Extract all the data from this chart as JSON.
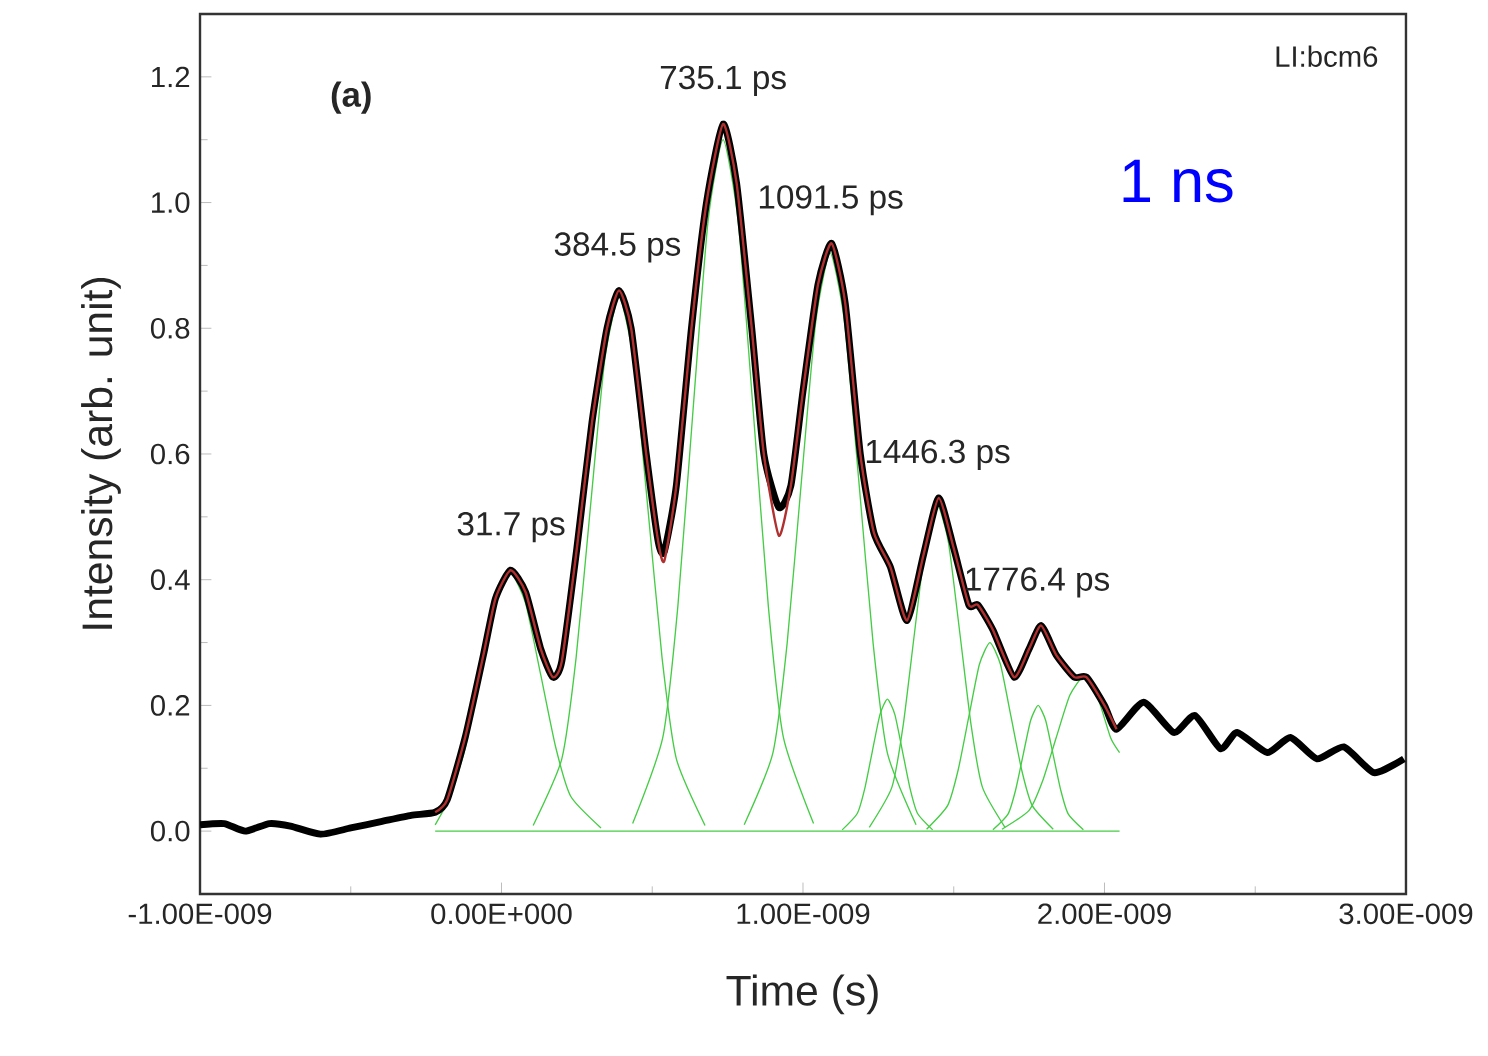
{
  "chart_data": {
    "type": "line",
    "xlabel": "Time (s)",
    "ylabel": "Intensity (arb. unit)",
    "xlim": [
      -1e-09,
      3e-09
    ],
    "ylim": [
      -0.1,
      1.3
    ],
    "xticks": [
      {
        "value": -1e-09,
        "label": "-1.00E-009"
      },
      {
        "value": 0,
        "label": "0.00E+000"
      },
      {
        "value": 1e-09,
        "label": "1.00E-009"
      },
      {
        "value": 2e-09,
        "label": "2.00E-009"
      },
      {
        "value": 3e-09,
        "label": "3.00E-009"
      }
    ],
    "yticks": [
      {
        "value": 0,
        "label": "0.0"
      },
      0.2,
      0.4,
      0.6,
      0.8,
      {
        "value": 1,
        "label": "1.0"
      },
      1.2
    ],
    "series": [
      {
        "color": "#000000",
        "x": [
          -1e-09,
          -9.2e-10,
          -8.5e-10,
          -7.7e-10,
          -7e-10,
          -6e-10,
          -5e-10,
          -4e-10,
          -3e-10,
          -2.2e-10,
          -1.8e-10,
          -1.2e-10,
          -6e-11,
          -2e-11,
          3e-11,
          8e-11,
          1.3e-10,
          1.7e-10,
          2e-10,
          2.5e-10,
          3e-10,
          3.5e-10,
          3.9e-10,
          4.3e-10,
          4.8e-10,
          5.2e-10,
          5.4e-10,
          5.8e-10,
          6.3e-10,
          6.8e-10,
          7.35e-10,
          7.8e-10,
          8.3e-10,
          8.7e-10,
          9.2e-10,
          9.6e-10,
          1e-09,
          1.05e-09,
          1.095e-09,
          1.14e-09,
          1.19e-09,
          1.235e-09,
          1.29e-09,
          1.345e-09,
          1.4e-09,
          1.45e-09,
          1.5e-09,
          1.55e-09,
          1.58e-09,
          1.63e-09,
          1.7e-09,
          1.75e-09,
          1.79e-09,
          1.84e-09,
          1.9e-09,
          1.94e-09,
          2e-09,
          2.04e-09,
          2.13e-09,
          2.23e-09,
          2.3e-09,
          2.385e-09,
          2.44e-09,
          2.54e-09,
          2.617e-09,
          2.705e-09,
          2.794e-09,
          2.894e-09,
          2.993e-09
        ],
        "values": [
          0.01,
          0.012,
          0.0,
          0.012,
          0.008,
          -0.005,
          0.005,
          0.015,
          0.025,
          0.03,
          0.05,
          0.15,
          0.28,
          0.37,
          0.415,
          0.38,
          0.29,
          0.245,
          0.27,
          0.45,
          0.65,
          0.8,
          0.86,
          0.8,
          0.6,
          0.46,
          0.445,
          0.55,
          0.8,
          1.0,
          1.125,
          1.03,
          0.8,
          0.6,
          0.515,
          0.55,
          0.7,
          0.87,
          0.935,
          0.84,
          0.6,
          0.475,
          0.42,
          0.335,
          0.44,
          0.53,
          0.45,
          0.36,
          0.36,
          0.32,
          0.245,
          0.29,
          0.327,
          0.28,
          0.245,
          0.245,
          0.2,
          0.162,
          0.205,
          0.157,
          0.184,
          0.131,
          0.157,
          0.125,
          0.149,
          0.115,
          0.134,
          0.093,
          0.115
        ]
      },
      {
        "color": "#b03030",
        "x": [
          -2.2e-10,
          -1.8e-10,
          -1.2e-10,
          -6e-11,
          -2e-11,
          3e-11,
          8e-11,
          1.3e-10,
          1.7e-10,
          2e-10,
          2.5e-10,
          3e-10,
          3.5e-10,
          3.9e-10,
          4.3e-10,
          4.8e-10,
          5.2e-10,
          5.4e-10,
          5.8e-10,
          6.3e-10,
          6.8e-10,
          7.35e-10,
          7.8e-10,
          8.3e-10,
          8.7e-10,
          9.2e-10,
          9.6e-10,
          1e-09,
          1.05e-09,
          1.095e-09,
          1.14e-09,
          1.19e-09,
          1.235e-09,
          1.29e-09,
          1.345e-09,
          1.4e-09,
          1.45e-09,
          1.5e-09,
          1.55e-09,
          1.58e-09,
          1.63e-09,
          1.7e-09,
          1.75e-09,
          1.79e-09,
          1.84e-09,
          1.9e-09,
          1.94e-09,
          2e-09,
          2.04e-09
        ],
        "values": [
          0.03,
          0.05,
          0.15,
          0.28,
          0.37,
          0.415,
          0.38,
          0.29,
          0.245,
          0.27,
          0.45,
          0.65,
          0.8,
          0.86,
          0.8,
          0.6,
          0.46,
          0.43,
          0.55,
          0.8,
          1.0,
          1.125,
          1.03,
          0.8,
          0.6,
          0.47,
          0.55,
          0.7,
          0.87,
          0.935,
          0.84,
          0.6,
          0.475,
          0.42,
          0.335,
          0.44,
          0.53,
          0.45,
          0.36,
          0.36,
          0.32,
          0.245,
          0.29,
          0.327,
          0.28,
          0.245,
          0.245,
          0.2,
          0.162
        ]
      },
      {
        "color": "#44cc44",
        "x": [
          -2.2e-10,
          2.05e-09
        ],
        "values": [
          0,
          0
        ]
      },
      {
        "color": "#44cc44",
        "x": [
          -2.2e-10,
          -1.7e-10,
          -1.2e-10,
          -7e-11,
          -2e-11,
          3e-11,
          8e-11,
          1.3e-10,
          1.8e-10,
          2.3e-10,
          3.3e-10
        ],
        "values": [
          0.01,
          0.055,
          0.133,
          0.249,
          0.362,
          0.41,
          0.362,
          0.249,
          0.133,
          0.055,
          0.005
        ]
      },
      {
        "color": "#44cc44",
        "x": [
          1.05e-10,
          2e-10,
          2.475e-10,
          2.95e-10,
          3.425e-10,
          3.9e-10,
          4.375e-10,
          4.85e-10,
          5.325e-10,
          5.8e-10,
          6.75e-10
        ],
        "values": [
          0.009,
          0.115,
          0.276,
          0.516,
          0.75,
          0.85,
          0.75,
          0.516,
          0.276,
          0.115,
          0.009
        ]
      },
      {
        "color": "#44cc44",
        "x": [
          4.35e-10,
          5.35e-10,
          5.85e-10,
          6.35e-10,
          6.85e-10,
          7.35e-10,
          7.85e-10,
          8.35e-10,
          8.85e-10,
          9.35e-10,
          1.035e-09
        ],
        "values": [
          0.012,
          0.149,
          0.358,
          0.668,
          0.97,
          1.1,
          0.97,
          0.668,
          0.358,
          0.149,
          0.012
        ]
      },
      {
        "color": "#44cc44",
        "x": [
          8.05e-10,
          9e-10,
          9.475e-10,
          9.95e-10,
          1.0425e-09,
          1.09e-09,
          1.1375e-09,
          1.185e-09,
          1.2325e-09,
          1.28e-09,
          1.375e-09
        ],
        "values": [
          0.01,
          0.124,
          0.299,
          0.558,
          0.811,
          0.92,
          0.811,
          0.558,
          0.299,
          0.124,
          0.01
        ]
      },
      {
        "color": "#44cc44",
        "x": [
          1.13e-09,
          1.18e-09,
          1.205e-09,
          1.23e-09,
          1.255e-09,
          1.28e-09,
          1.305e-09,
          1.33e-09,
          1.355e-09,
          1.38e-09,
          1.43e-09
        ],
        "values": [
          0.002,
          0.028,
          0.068,
          0.127,
          0.185,
          0.21,
          0.185,
          0.127,
          0.068,
          0.028,
          0.002
        ]
      },
      {
        "color": "#44cc44",
        "x": [
          1.22e-09,
          1.295e-09,
          1.3325e-09,
          1.37e-09,
          1.4075e-09,
          1.445e-09,
          1.4825e-09,
          1.52e-09,
          1.5575e-09,
          1.595e-09,
          1.67e-09
        ],
        "values": [
          0.006,
          0.07,
          0.169,
          0.316,
          0.459,
          0.52,
          0.459,
          0.316,
          0.169,
          0.07,
          0.006
        ]
      },
      {
        "color": "#44cc44",
        "x": [
          1.41e-09,
          1.48e-09,
          1.515e-09,
          1.55e-09,
          1.585e-09,
          1.62e-09,
          1.655e-09,
          1.69e-09,
          1.725e-09,
          1.76e-09,
          1.83e-09
        ],
        "values": [
          0.003,
          0.041,
          0.098,
          0.182,
          0.265,
          0.3,
          0.265,
          0.182,
          0.098,
          0.041,
          0.003
        ]
      },
      {
        "color": "#44cc44",
        "x": [
          1.63e-09,
          1.68e-09,
          1.705e-09,
          1.73e-09,
          1.755e-09,
          1.78e-09,
          1.805e-09,
          1.83e-09,
          1.855e-09,
          1.88e-09,
          1.93e-09
        ],
        "values": [
          0.002,
          0.027,
          0.065,
          0.121,
          0.176,
          0.2,
          0.176,
          0.121,
          0.065,
          0.027,
          0.002
        ]
      },
      {
        "color": "#44cc44",
        "x": [
          1.66e-09,
          1.75e-09,
          1.795e-09,
          1.84e-09,
          1.885e-09,
          1.93e-09,
          1.975e-09,
          2.02e-09,
          2.05e-09
        ],
        "values": [
          0.003,
          0.033,
          0.08,
          0.149,
          0.216,
          0.245,
          0.216,
          0.149,
          0.125
        ]
      }
    ],
    "annotations": [
      {
        "text": "31.7 ps",
        "x": 3.17e-11,
        "y": 0.415
      },
      {
        "text": "384.5 ps",
        "x": 3.845e-10,
        "y": 0.86
      },
      {
        "text": "735.1 ps",
        "x": 7.351e-10,
        "y": 1.125
      },
      {
        "text": "1091.5 ps",
        "x": 1.0915e-09,
        "y": 0.935
      },
      {
        "text": "1446.3 ps",
        "x": 1.4463e-09,
        "y": 0.53
      },
      {
        "text": "1776.4 ps",
        "x": 1.7764e-09,
        "y": 0.327
      },
      "**(a)**",
      "LI:bcm6",
      "1 ns"
    ]
  }
}
